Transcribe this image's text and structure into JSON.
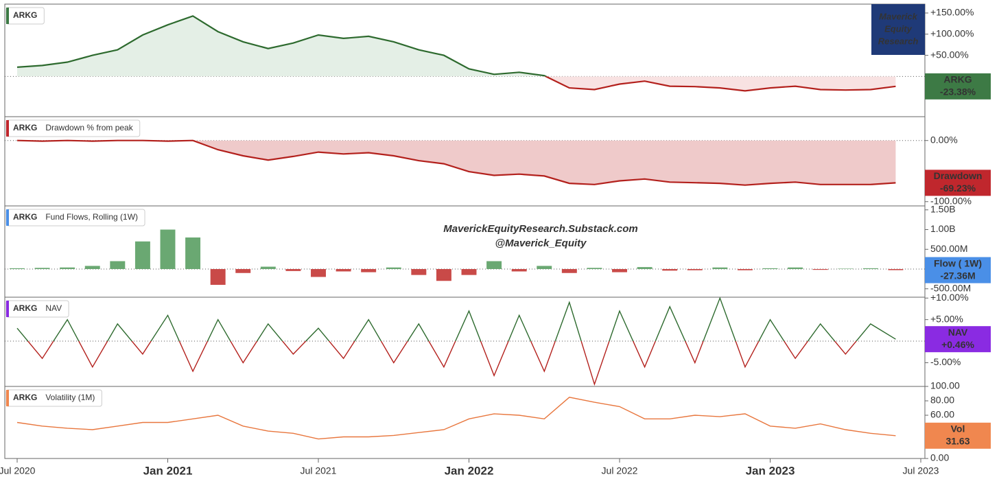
{
  "logo": [
    "Maverick",
    "Equity",
    "Research"
  ],
  "watermark": [
    "MaverickEquityResearch.Substack.com",
    "@Maverick_Equity"
  ],
  "chart_data": [
    {
      "type": "area",
      "symbol": "ARKG",
      "badge": "ARKG",
      "badge_color": "#3d7a45",
      "zero_line": true,
      "colors": {
        "positive": "#2d6a2e",
        "negative": "#b3201c",
        "positive_fill": "#e4efe6",
        "negative_fill": "#f8e2e2"
      },
      "x": [
        "2020-07",
        "2020-08",
        "2020-09",
        "2020-10",
        "2020-11",
        "2020-12",
        "2021-01",
        "2021-02",
        "2021-03",
        "2021-04",
        "2021-05",
        "2021-06",
        "2021-07",
        "2021-08",
        "2021-09",
        "2021-10",
        "2021-11",
        "2021-12",
        "2022-01",
        "2022-02",
        "2022-03",
        "2022-04",
        "2022-05",
        "2022-06",
        "2022-07",
        "2022-08",
        "2022-09",
        "2022-10",
        "2022-11",
        "2022-12",
        "2023-01",
        "2023-02",
        "2023-03",
        "2023-04",
        "2023-05",
        "2023-06"
      ],
      "values": [
        22,
        26,
        34,
        50,
        63,
        98,
        122,
        143,
        106,
        82,
        66,
        79,
        98,
        90,
        95,
        82,
        63,
        50,
        18,
        5,
        10,
        2,
        -27,
        -31,
        -18,
        -11,
        -23,
        -24,
        -27,
        -34,
        -27,
        -23,
        -31,
        -32,
        -31,
        -23.38
      ],
      "last_label": "-23.38%",
      "ylim": [
        -95,
        171
      ],
      "yticks": [
        {
          "value": 150,
          "label": "+150.00%"
        },
        {
          "value": 100,
          "label": "+100.00%"
        },
        {
          "value": 50,
          "label": "+50.00%"
        }
      ]
    },
    {
      "type": "area",
      "symbol": "ARKG",
      "legend": "Drawdown % from peak",
      "badge": "Drawdown",
      "badge_color": "#c0272d",
      "zero_line": true,
      "color": "#b3201c",
      "fill": "#efcaca",
      "x": [
        "2020-07",
        "2020-08",
        "2020-09",
        "2020-10",
        "2020-11",
        "2020-12",
        "2021-01",
        "2021-02",
        "2021-03",
        "2021-04",
        "2021-05",
        "2021-06",
        "2021-07",
        "2021-08",
        "2021-09",
        "2021-10",
        "2021-11",
        "2021-12",
        "2022-01",
        "2022-02",
        "2022-03",
        "2022-04",
        "2022-05",
        "2022-06",
        "2022-07",
        "2022-08",
        "2022-09",
        "2022-10",
        "2022-11",
        "2022-12",
        "2023-01",
        "2023-02",
        "2023-03",
        "2023-04",
        "2023-05",
        "2023-06"
      ],
      "values": [
        0,
        -1,
        0,
        -1,
        0,
        0,
        -1,
        0,
        -15,
        -25,
        -32,
        -26,
        -19,
        -22,
        -20,
        -25,
        -33,
        -38,
        -51,
        -57,
        -55,
        -58,
        -70,
        -72,
        -66,
        -63,
        -68,
        -69,
        -70,
        -73,
        -70,
        -68,
        -72,
        -72,
        -72,
        -69.23
      ],
      "last_label": "-69.23%",
      "ylim": [
        -107,
        39
      ],
      "yticks": [
        {
          "value": 0,
          "label": "0.00%"
        },
        {
          "value": -100,
          "label": "-100.00%"
        }
      ]
    },
    {
      "type": "bar",
      "symbol": "ARKG",
      "legend": "Fund Flows, Rolling (1W)",
      "badge": "Flow ( 1W)",
      "badge_color": "#4a8fe7",
      "zero_line": true,
      "colors": {
        "positive": "#6aa872",
        "negative": "#c94a48"
      },
      "x": [
        "2020-07",
        "2020-08",
        "2020-09",
        "2020-10",
        "2020-11",
        "2020-12",
        "2021-01",
        "2021-02",
        "2021-03",
        "2021-04",
        "2021-05",
        "2021-06",
        "2021-07",
        "2021-08",
        "2021-09",
        "2021-10",
        "2021-11",
        "2021-12",
        "2022-01",
        "2022-02",
        "2022-03",
        "2022-04",
        "2022-05",
        "2022-06",
        "2022-07",
        "2022-08",
        "2022-09",
        "2022-10",
        "2022-11",
        "2022-12",
        "2023-01",
        "2023-02",
        "2023-03",
        "2023-04",
        "2023-05",
        "2023-06"
      ],
      "values": [
        20,
        30,
        40,
        80,
        200,
        700,
        1000,
        800,
        -400,
        -100,
        60,
        -50,
        -200,
        -60,
        -80,
        40,
        -150,
        -300,
        -150,
        200,
        -60,
        80,
        -100,
        30,
        -80,
        50,
        -40,
        -30,
        40,
        -30,
        20,
        40,
        -20,
        10,
        20,
        -27.36
      ],
      "last_label": "-27.36M",
      "ylim": [
        -713,
        1600
      ],
      "yticks": [
        {
          "value": 1500,
          "label": "1.50B"
        },
        {
          "value": 1000,
          "label": "1.00B"
        },
        {
          "value": 500,
          "label": "500.00M"
        },
        {
          "value": -500,
          "label": "-500.00M"
        }
      ]
    },
    {
      "type": "line",
      "symbol": "ARKG",
      "legend": "NAV",
      "badge": "NAV",
      "badge_color": "#8a2be2",
      "zero_line": true,
      "colors": {
        "positive": "#2d6a2e",
        "negative": "#b3201c"
      },
      "x": [
        "2020-07",
        "2020-08",
        "2020-09",
        "2020-10",
        "2020-11",
        "2020-12",
        "2021-01",
        "2021-02",
        "2021-03",
        "2021-04",
        "2021-05",
        "2021-06",
        "2021-07",
        "2021-08",
        "2021-09",
        "2021-10",
        "2021-11",
        "2021-12",
        "2022-01",
        "2022-02",
        "2022-03",
        "2022-04",
        "2022-05",
        "2022-06",
        "2022-07",
        "2022-08",
        "2022-09",
        "2022-10",
        "2022-11",
        "2022-12",
        "2023-01",
        "2023-02",
        "2023-03",
        "2023-04",
        "2023-05",
        "2023-06"
      ],
      "values": [
        3,
        -4,
        5,
        -6,
        4,
        -3,
        6,
        -7,
        5,
        -5,
        4,
        -3,
        3,
        -4,
        5,
        -5,
        4,
        -6,
        7,
        -8,
        6,
        -7,
        9,
        -10,
        7,
        -6,
        8,
        -5,
        10,
        -6,
        5,
        -4,
        4,
        -3,
        4,
        0.46
      ],
      "last_label": "+0.46%",
      "ylim": [
        -10.5,
        10.2
      ],
      "yticks": [
        {
          "value": 10,
          "label": "+10.00%"
        },
        {
          "value": 5,
          "label": "+5.00%"
        },
        {
          "value": -5,
          "label": "-5.00%"
        }
      ]
    },
    {
      "type": "line",
      "symbol": "ARKG",
      "legend": "Volatility (1M)",
      "badge": "Vol",
      "badge_color": "#f0874f",
      "color": "#e8763d",
      "x": [
        "2020-07",
        "2020-08",
        "2020-09",
        "2020-10",
        "2020-11",
        "2020-12",
        "2021-01",
        "2021-02",
        "2021-03",
        "2021-04",
        "2021-05",
        "2021-06",
        "2021-07",
        "2021-08",
        "2021-09",
        "2021-10",
        "2021-11",
        "2021-12",
        "2022-01",
        "2022-02",
        "2022-03",
        "2022-04",
        "2022-05",
        "2022-06",
        "2022-07",
        "2022-08",
        "2022-09",
        "2022-10",
        "2022-11",
        "2022-12",
        "2023-01",
        "2023-02",
        "2023-03",
        "2023-04",
        "2023-05",
        "2023-06"
      ],
      "values": [
        50,
        45,
        42,
        40,
        45,
        50,
        50,
        55,
        60,
        45,
        38,
        35,
        27,
        30,
        30,
        32,
        36,
        40,
        55,
        62,
        60,
        55,
        85,
        78,
        72,
        55,
        55,
        60,
        58,
        62,
        45,
        42,
        48,
        40,
        35,
        31.63
      ],
      "last_label": "31.63",
      "ylim": [
        0,
        100
      ],
      "yticks": [
        {
          "value": 100,
          "label": "100.00"
        },
        {
          "value": 80,
          "label": "80.00"
        },
        {
          "value": 60,
          "label": "60.00"
        },
        {
          "value": 0,
          "label": "0.00"
        }
      ],
      "xlim": [
        "2020-07",
        "2023-07"
      ],
      "xticks": [
        {
          "value": "2020-07",
          "label": "Jul 2020"
        },
        {
          "value": "2021-01",
          "label": "Jan 2021"
        },
        {
          "value": "2021-07",
          "label": "Jul 2021"
        },
        {
          "value": "2022-01",
          "label": "Jan 2022"
        },
        {
          "value": "2022-07",
          "label": "Jul 2022"
        },
        {
          "value": "2023-01",
          "label": "Jan 2023"
        },
        {
          "value": "2023-07",
          "label": "Jul 2023"
        }
      ]
    }
  ]
}
